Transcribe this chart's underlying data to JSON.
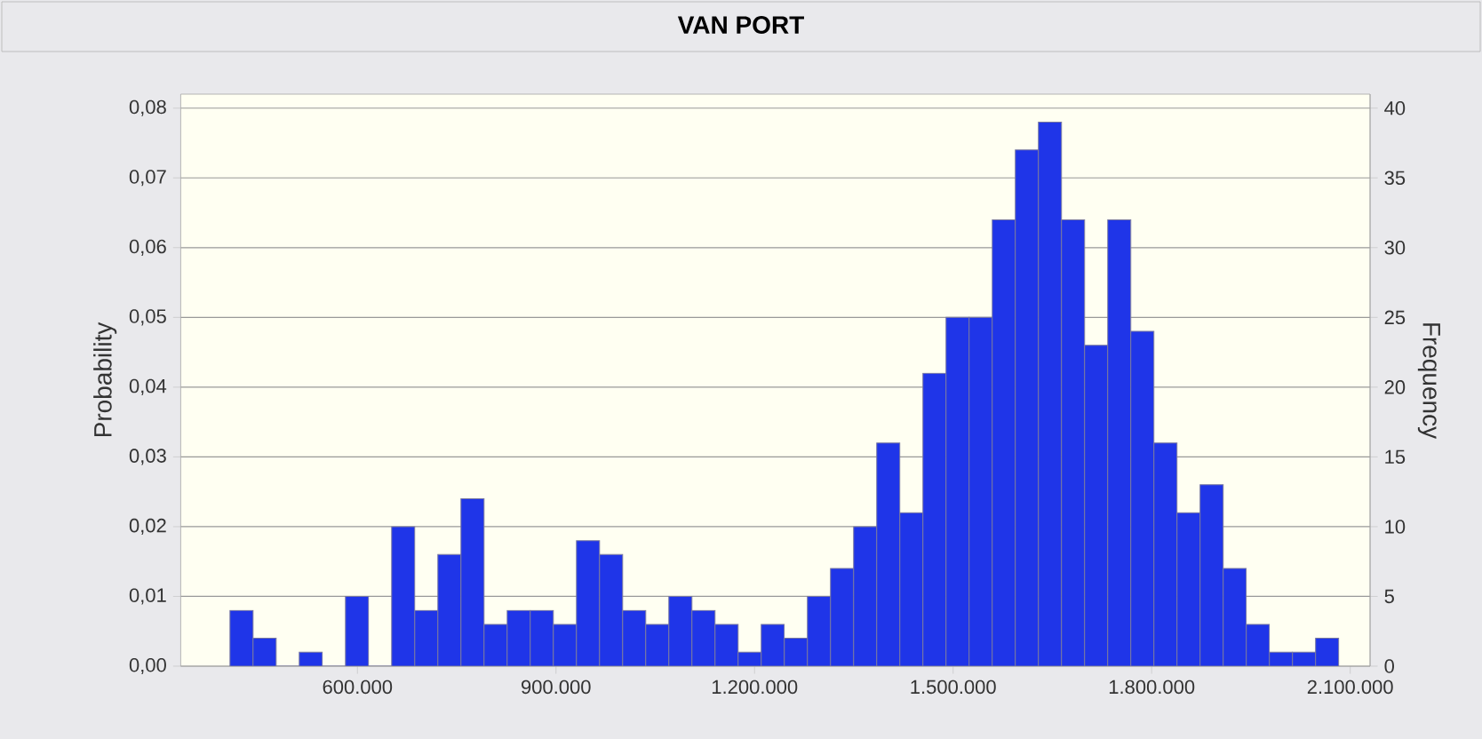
{
  "chart_data": {
    "type": "histogram",
    "title": "VAN PORT",
    "ylabel": "Probability",
    "y2label": "Frequency",
    "color": "#1f35e8",
    "bins": [
      407400,
      442300,
      477200,
      512100,
      547000,
      581900,
      616800,
      651700,
      686600,
      721500,
      756400,
      791300,
      826200,
      861100,
      896000,
      930900,
      965800,
      1000700,
      1035600,
      1070500,
      1105400,
      1140300,
      1175200,
      1210100,
      1245000,
      1279900,
      1314800,
      1349700,
      1384600,
      1419500,
      1454400,
      1489300,
      1524200,
      1559100,
      1594000,
      1628900,
      1663800,
      1698700,
      1733600,
      1768500,
      1803400,
      1838300,
      1873200,
      1908100,
      1943000,
      1977900,
      2012800,
      2047700,
      2082600
    ],
    "values": [
      0.008,
      0.004,
      0,
      0.002,
      0,
      0.01,
      0,
      0.02,
      0.008,
      0.016,
      0.024,
      0.006,
      0.008,
      0.008,
      0.006,
      0.018,
      0.016,
      0.008,
      0.006,
      0.01,
      0.008,
      0.006,
      0.002,
      0.006,
      0.004,
      0.01,
      0.014,
      0.02,
      0.032,
      0.022,
      0.042,
      0.05,
      0.05,
      0.064,
      0.074,
      0.078,
      0.064,
      0.046,
      0.064,
      0.048,
      0.032,
      0.022,
      0.026,
      0.014,
      0.006,
      0.002,
      0.002,
      0.004
    ],
    "xlim": [
      333000,
      2130000
    ],
    "xticks": [
      {
        "value": 600000,
        "label": "600.000"
      },
      {
        "value": 900000,
        "label": "900.000"
      },
      {
        "value": 1200000,
        "label": "1.200.000"
      },
      {
        "value": 1500000,
        "label": "1.500.000"
      },
      {
        "value": 1800000,
        "label": "1.800.000"
      },
      {
        "value": 2100000,
        "label": "2.100.000"
      }
    ],
    "ylim": [
      0,
      0.082
    ],
    "yticks": [
      {
        "value": 0,
        "label": "0,00"
      },
      {
        "value": 0.01,
        "label": "0,01"
      },
      {
        "value": 0.02,
        "label": "0,02"
      },
      {
        "value": 0.03,
        "label": "0,03"
      },
      {
        "value": 0.04,
        "label": "0,04"
      },
      {
        "value": 0.05,
        "label": "0,05"
      },
      {
        "value": 0.06,
        "label": "0,06"
      },
      {
        "value": 0.07,
        "label": "0,07"
      },
      {
        "value": 0.08,
        "label": "0,08"
      }
    ],
    "y2lim": [
      0,
      41
    ],
    "y2ticks": [
      0,
      5,
      10,
      15,
      20,
      25,
      30,
      35,
      40
    ],
    "grid": "y"
  }
}
